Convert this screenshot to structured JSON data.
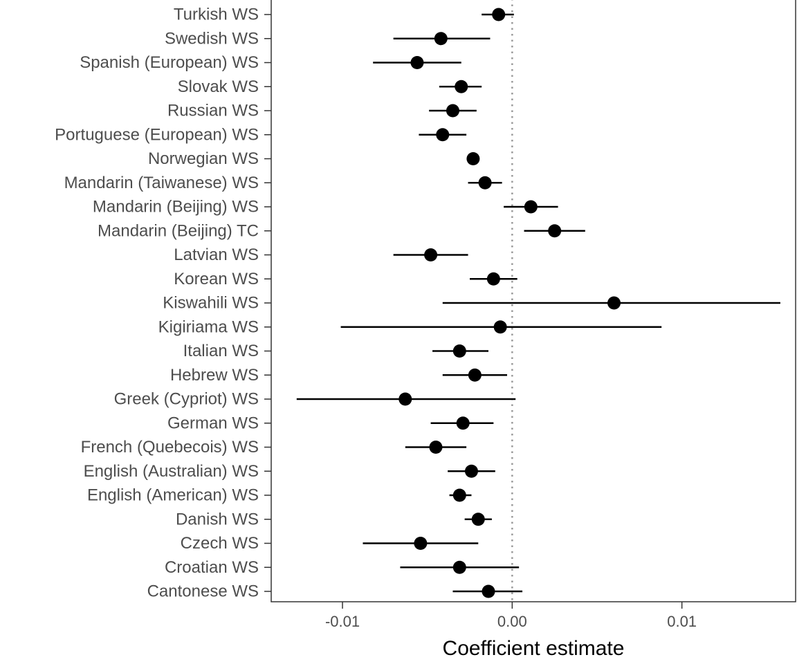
{
  "chart_data": {
    "type": "scatter",
    "subtype": "forest-plot",
    "title": "",
    "xlabel": "Coefficient estimate",
    "ylabel": "",
    "xlim": [
      -0.0142,
      0.0167
    ],
    "x_ticks": [
      -0.01,
      0.0,
      0.01
    ],
    "x_tick_labels": [
      "-0.01",
      "0.00",
      "0.01"
    ],
    "reference_line": {
      "x": 0.0,
      "style": "dotted",
      "color": "#999999"
    },
    "grid": false,
    "legend": "none",
    "point_color": "#000000",
    "categories": [
      "Cantonese WS",
      "Croatian WS",
      "Czech WS",
      "Danish WS",
      "English (American) WS",
      "English (Australian) WS",
      "French (Quebecois) WS",
      "German WS",
      "Greek (Cypriot) WS",
      "Hebrew WS",
      "Italian WS",
      "Kigiriama WS",
      "Kiswahili WS",
      "Korean WS",
      "Latvian WS",
      "Mandarin (Beijing) TC",
      "Mandarin (Beijing) WS",
      "Mandarin (Taiwanese) WS",
      "Norwegian WS",
      "Portuguese (European) WS",
      "Russian WS",
      "Slovak WS",
      "Spanish (European) WS",
      "Swedish WS",
      "Turkish WS"
    ],
    "estimates": [
      -0.0014,
      -0.0031,
      -0.0054,
      -0.002,
      -0.0031,
      -0.0024,
      -0.0045,
      -0.0029,
      -0.0063,
      -0.0022,
      -0.0031,
      -0.0007,
      0.006,
      -0.0011,
      -0.0048,
      0.0025,
      0.0011,
      -0.0016,
      -0.0023,
      -0.0041,
      -0.0035,
      -0.003,
      -0.0056,
      -0.0042,
      -0.0008
    ],
    "lower": [
      -0.0035,
      -0.0066,
      -0.0088,
      -0.0028,
      -0.0037,
      -0.0038,
      -0.0063,
      -0.0048,
      -0.0127,
      -0.0041,
      -0.0047,
      -0.0101,
      -0.0041,
      -0.0025,
      -0.007,
      0.0007,
      -0.0005,
      -0.0026,
      -0.0026,
      -0.0055,
      -0.0049,
      -0.0043,
      -0.0082,
      -0.007,
      -0.0018
    ],
    "upper": [
      0.0006,
      0.0004,
      -0.002,
      -0.0012,
      -0.0024,
      -0.001,
      -0.0027,
      -0.0011,
      0.0002,
      -0.0003,
      -0.0014,
      0.0088,
      0.0158,
      0.0003,
      -0.0026,
      0.0043,
      0.0027,
      -0.0006,
      -0.002,
      -0.0027,
      -0.0021,
      -0.0018,
      -0.003,
      -0.0013,
      0.0001
    ]
  }
}
